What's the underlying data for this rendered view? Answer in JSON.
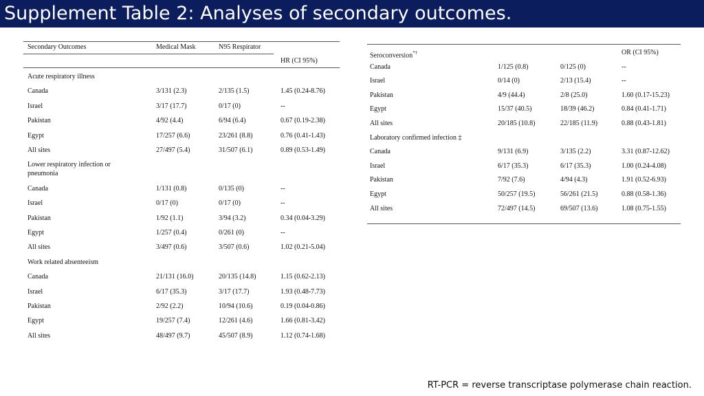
{
  "page_title": "Supplement Table 2: Analyses of secondary outcomes.",
  "left_table": {
    "headers": {
      "col1": "Secondary Outcomes",
      "col2": "Medical Mask",
      "col3": "N95 Respirator",
      "col4": "HR (CI 95%)"
    },
    "sections": [
      {
        "label": "Acute respiratory illness",
        "rows": [
          [
            "Canada",
            "3/131 (2.3)",
            "2/135 (1.5)",
            "1.45 (0.24-8.76)"
          ],
          [
            "Israel",
            "3/17 (17.7)",
            "0/17 (0)",
            "--"
          ],
          [
            "Pakistan",
            "4/92 (4.4)",
            "6/94 (6.4)",
            "0.67 (0.19-2.38)"
          ],
          [
            "Egypt",
            "17/257 (6.6)",
            "23/261 (8.8)",
            "0.76 (0.41-1.43)"
          ],
          [
            "All sites",
            "27/497 (5.4)",
            "31/507 (6.1)",
            "0.89 (0.53-1.49)"
          ]
        ]
      },
      {
        "label": "Lower respiratory infection or",
        "label2": "pneumonia",
        "rows": [
          [
            "Canada",
            "1/131 (0.8)",
            "0/135 (0)",
            "--"
          ],
          [
            "Israel",
            "0/17 (0)",
            "0/17 (0)",
            "--"
          ],
          [
            "Pakistan",
            "1/92 (1.1)",
            "3/94 (3.2)",
            "0.34 (0.04-3.29)"
          ],
          [
            "Egypt",
            "1/257 (0.4)",
            "0/261 (0)",
            "--"
          ],
          [
            "All sites",
            "3/497 (0.6)",
            "3/507 (0.6)",
            "1.02 (0.21-5.04)"
          ]
        ]
      },
      {
        "label": "Work related absenteeism",
        "rows": [
          [
            "Canada",
            "21/131 (16.0)",
            "20/135 (14.8)",
            "1.15 (0.62-2.13)"
          ],
          [
            "Israel",
            "6/17 (35.3)",
            "3/17 (17.7)",
            "1.93 (0.48-7.73)"
          ],
          [
            "Pakistan",
            "2/92 (2.2)",
            "10/94 (10.6)",
            "0.19 (0.04-0.86)"
          ],
          [
            "Egypt",
            "19/257 (7.4)",
            "12/261 (4.6)",
            "1.66 (0.81-3.42)"
          ],
          [
            "All sites",
            "48/497 (9.7)",
            "45/507 (8.9)",
            "1.12 (0.74-1.68)"
          ]
        ]
      }
    ]
  },
  "right_table": {
    "headers": {
      "col4": "OR (CI 95%)"
    },
    "sections": [
      {
        "label": "Seroconversion",
        "label_sup": "*†",
        "rows": [
          [
            "Canada",
            "1/125 (0.8)",
            "0/125 (0)",
            "--"
          ],
          [
            "Israel",
            "0/14 (0)",
            "2/13 (15.4)",
            "--"
          ],
          [
            "Pakistan",
            "4/9 (44.4)",
            "2/8 (25.0)",
            "1.60 (0.17-15.23)"
          ],
          [
            "Egypt",
            "15/37 (40.5)",
            "18/39 (46.2)",
            "0.84 (0.41-1.71)"
          ],
          [
            "All sites",
            "20/185 (10.8)",
            "22/185 (11.9)",
            "0.88 (0.43-1.81)"
          ]
        ]
      },
      {
        "label": "Laboratory confirmed infection ‡",
        "rows": [
          [
            "Canada",
            "9/131 (6.9)",
            "3/135 (2.2)",
            "3.31 (0.87-12.62)"
          ],
          [
            "Israel",
            "6/17 (35.3)",
            "6/17 (35.3)",
            "1.00 (0.24-4.08)"
          ],
          [
            "Pakistan",
            "7/92 (7.6)",
            "4/94 (4.3)",
            "1.91 (0.52-6.93)"
          ],
          [
            "Egypt",
            "50/257 (19.5)",
            "56/261 (21.5)",
            "0.88 (0.58-1.36)"
          ],
          [
            "All sites",
            "72/497 (14.5)",
            "69/507 (13.6)",
            "1.08 (0.75-1.55)"
          ]
        ]
      }
    ]
  },
  "footnote": "RT-PCR = reverse transcriptase polymerase chain reaction."
}
